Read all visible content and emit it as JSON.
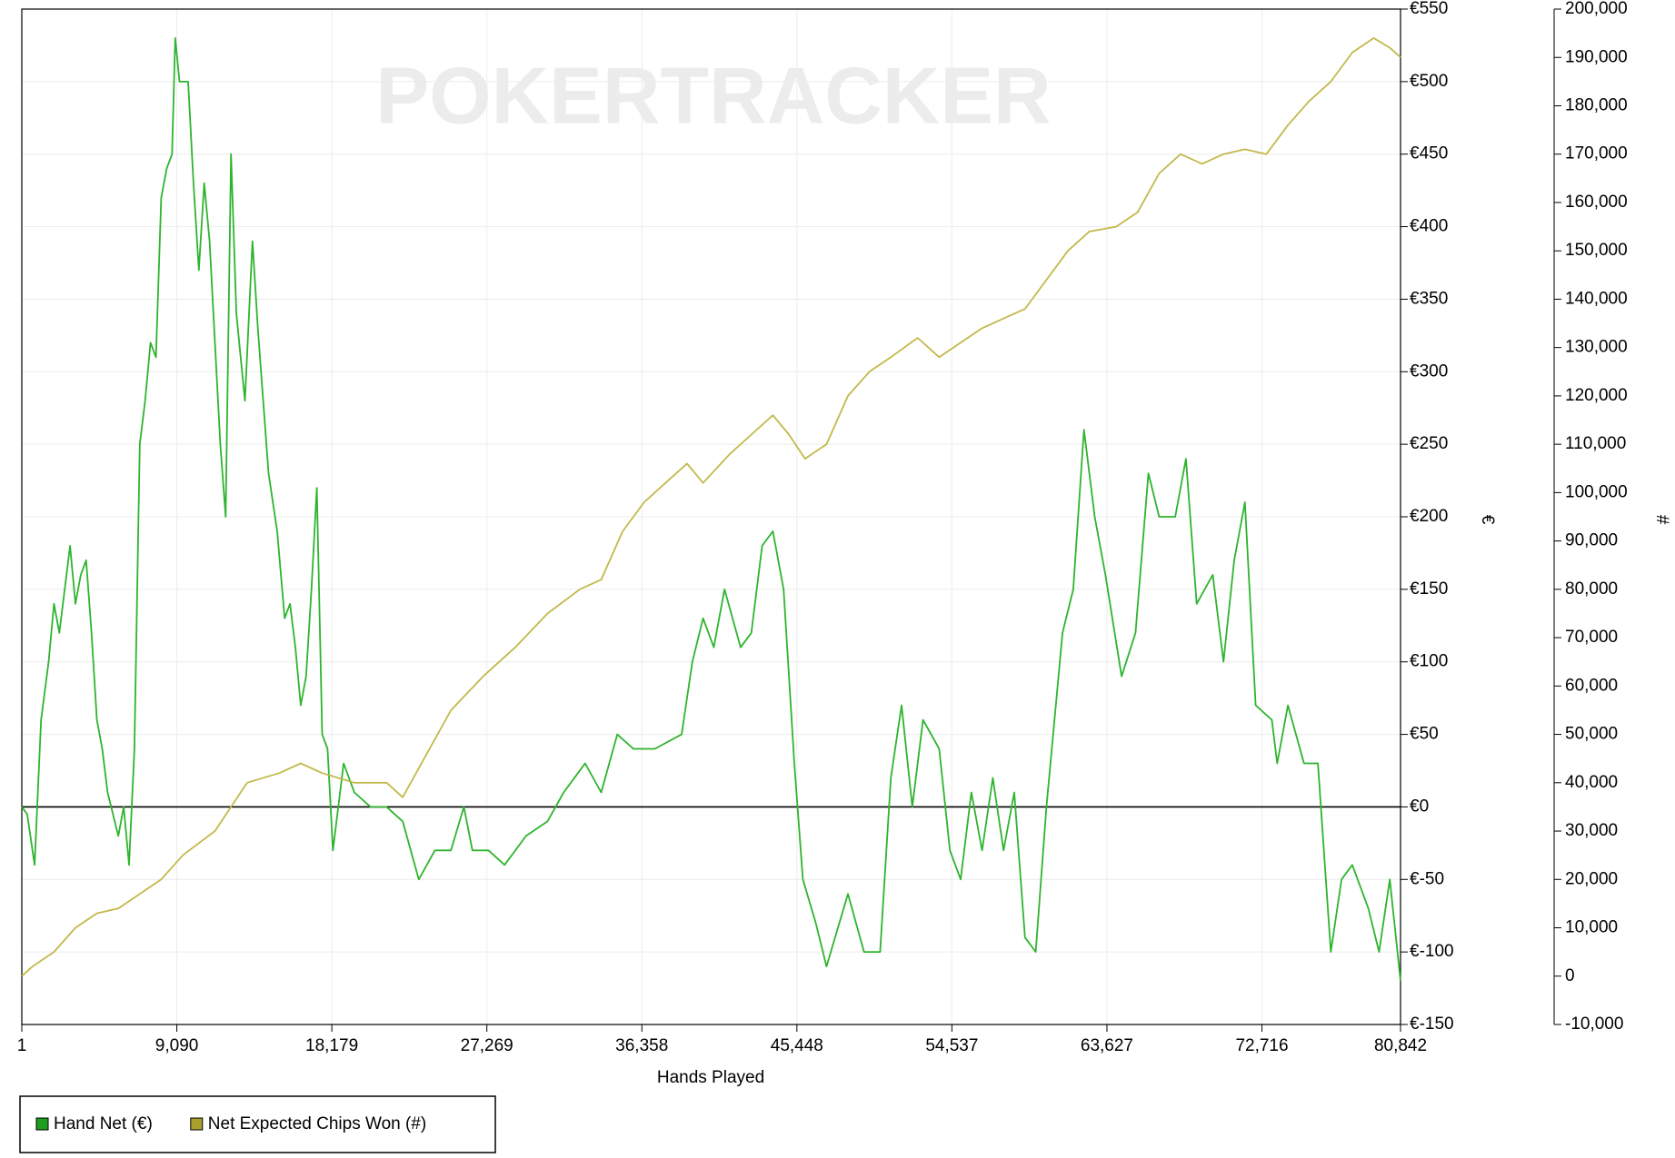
{
  "chart_data": {
    "type": "line",
    "watermark": "POKERTRACKER",
    "x_label": "Hands Played",
    "y_label": "€",
    "y2_label": "#",
    "grid": true,
    "legend": "bottom-left",
    "xlim": [
      1,
      80842
    ],
    "xticks": [
      1,
      {
        "value": 9090,
        "label": "9,090"
      },
      {
        "value": 18179,
        "label": "18,179"
      },
      {
        "value": 27269,
        "label": "27,269"
      },
      {
        "value": 36358,
        "label": "36,358"
      },
      {
        "value": 45448,
        "label": "45,448"
      },
      {
        "value": 54537,
        "label": "54,537"
      },
      {
        "value": 63627,
        "label": "63,627"
      },
      {
        "value": 72716,
        "label": "72,716"
      },
      {
        "value": 80842,
        "label": "80,842"
      }
    ],
    "ylim": [
      -150,
      550
    ],
    "yticks": [
      {
        "value": -150,
        "label": "€-150"
      },
      {
        "value": -100,
        "label": "€-100"
      },
      {
        "value": -50,
        "label": "€-50"
      },
      {
        "value": 0,
        "label": "€0"
      },
      {
        "value": 50,
        "label": "€50"
      },
      {
        "value": 100,
        "label": "€100"
      },
      {
        "value": 150,
        "label": "€150"
      },
      {
        "value": 200,
        "label": "€200"
      },
      {
        "value": 250,
        "label": "€250"
      },
      {
        "value": 300,
        "label": "€300"
      },
      {
        "value": 350,
        "label": "€350"
      },
      {
        "value": 400,
        "label": "€400"
      },
      {
        "value": 450,
        "label": "€450"
      },
      {
        "value": 500,
        "label": "€500"
      },
      {
        "value": 550,
        "label": "€550"
      }
    ],
    "y2lim": [
      -10000,
      200000
    ],
    "y2ticks": [
      {
        "value": -10000,
        "label": "-10,000"
      },
      0,
      {
        "value": 10000,
        "label": "10,000"
      },
      {
        "value": 20000,
        "label": "20,000"
      },
      {
        "value": 30000,
        "label": "30,000"
      },
      {
        "value": 40000,
        "label": "40,000"
      },
      {
        "value": 50000,
        "label": "50,000"
      },
      {
        "value": 60000,
        "label": "60,000"
      },
      {
        "value": 70000,
        "label": "70,000"
      },
      {
        "value": 80000,
        "label": "80,000"
      },
      {
        "value": 90000,
        "label": "90,000"
      },
      {
        "value": 100000,
        "label": "100,000"
      },
      {
        "value": 110000,
        "label": "110,000"
      },
      {
        "value": 120000,
        "label": "120,000"
      },
      {
        "value": 130000,
        "label": "130,000"
      },
      {
        "value": 140000,
        "label": "140,000"
      },
      {
        "value": 150000,
        "label": "150,000"
      },
      {
        "value": 160000,
        "label": "160,000"
      },
      {
        "value": 170000,
        "label": "170,000"
      },
      {
        "value": 180000,
        "label": "180,000"
      },
      {
        "value": 190000,
        "label": "190,000"
      },
      {
        "value": 200000,
        "label": "200,000"
      }
    ],
    "series": [
      {
        "name": "Hand Net (€)",
        "color": "#2eb42e",
        "legend_color": "#1e9e1e",
        "x": [
          1,
          315,
          755,
          1132,
          1573,
          1887,
          2202,
          2516,
          2831,
          3146,
          3460,
          3775,
          4089,
          4404,
          4718,
          5033,
          5662,
          5977,
          6291,
          6606,
          6920,
          7235,
          7549,
          7864,
          8178,
          8493,
          8808,
          8996,
          9248,
          9751,
          10066,
          10380,
          10695,
          11009,
          11324,
          11639,
          11953,
          12268,
          12582,
          13085,
          13526,
          13840,
          14470,
          14973,
          15413,
          15728,
          16042,
          16357,
          16671,
          16986,
          17301,
          17615,
          17930,
          18244,
          18873,
          19502,
          20446,
          21390,
          22333,
          23277,
          24221,
          25164,
          25919,
          26423,
          27366,
          28310,
          29568,
          30826,
          31770,
          33028,
          33972,
          34916,
          35859,
          37117,
          38690,
          39319,
          39948,
          40578,
          41207,
          42150,
          42779,
          43409,
          44038,
          44667,
          45296,
          45799,
          46554,
          47184,
          48442,
          49385,
          50330,
          50958,
          51588,
          52217,
          52846,
          53790,
          54419,
          55048,
          55677,
          56306,
          56935,
          57565,
          58194,
          58823,
          59452,
          60081,
          61025,
          61654,
          62283,
          62912,
          63541,
          64485,
          65303,
          66059,
          66688,
          67631,
          68260,
          68890,
          69832,
          70462,
          71091,
          71721,
          72350,
          73294,
          73608,
          74237,
          75181,
          75996,
          76754,
          77383,
          78012,
          78956,
          79585,
          80214,
          80842
        ],
        "values": [
          0,
          -5,
          -40,
          60,
          100,
          140,
          120,
          150,
          180,
          140,
          160,
          170,
          120,
          60,
          40,
          10,
          -20,
          0,
          -40,
          40,
          250,
          280,
          320,
          310,
          420,
          440,
          450,
          530,
          500,
          500,
          430,
          370,
          430,
          390,
          320,
          250,
          200,
          450,
          340,
          280,
          390,
          330,
          230,
          190,
          130,
          140,
          110,
          70,
          90,
          150,
          220,
          50,
          40,
          -30,
          30,
          10,
          0,
          0,
          -10,
          -50,
          -30,
          -30,
          0,
          -30,
          -30,
          -40,
          -20,
          -10,
          10,
          30,
          10,
          50,
          40,
          40,
          50,
          100,
          130,
          110,
          150,
          110,
          120,
          180,
          190,
          150,
          30,
          -50,
          -80,
          -110,
          -60,
          -100,
          -100,
          20,
          70,
          0,
          60,
          40,
          -30,
          -50,
          10,
          -30,
          20,
          -30,
          10,
          -90,
          -100,
          0,
          120,
          150,
          260,
          200,
          160,
          90,
          120,
          230,
          200,
          200,
          240,
          140,
          160,
          100,
          170,
          210,
          70,
          60,
          30,
          70,
          30,
          30,
          -100,
          -50,
          -40,
          -70,
          -100,
          -50,
          -120
        ]
      },
      {
        "name": "Net Expected Chips Won (#)",
        "color": "#c2b94a",
        "legend_color": "#a99f2c",
        "axis": "y2",
        "x": [
          1,
          630,
          1888,
          3146,
          4404,
          5662,
          6920,
          8178,
          9437,
          11324,
          13211,
          15099,
          16357,
          17615,
          19502,
          21390,
          22333,
          23592,
          25164,
          27052,
          28939,
          30826,
          32714,
          33972,
          35231,
          36489,
          37747,
          39005,
          39948,
          41521,
          42779,
          44038,
          44981,
          45925,
          47184,
          48442,
          49700,
          50958,
          52531,
          53790,
          55048,
          56306,
          57565,
          58823,
          60081,
          61339,
          62597,
          64170,
          65428,
          66688,
          67944,
          69202,
          70462,
          71718,
          72976,
          74237,
          75493,
          76754,
          78010,
          79270,
          80214,
          80842
        ],
        "values": [
          0,
          2000,
          5000,
          10000,
          13000,
          14000,
          17000,
          20000,
          25000,
          30000,
          40000,
          42000,
          44000,
          42000,
          40000,
          40000,
          37000,
          45000,
          55000,
          62000,
          68000,
          75000,
          80000,
          82000,
          92000,
          98000,
          102000,
          106000,
          102000,
          108000,
          112000,
          116000,
          112000,
          107000,
          110000,
          120000,
          125000,
          128000,
          132000,
          128000,
          131000,
          134000,
          136000,
          138000,
          144000,
          150000,
          154000,
          155000,
          158000,
          166000,
          170000,
          168000,
          170000,
          171000,
          170000,
          176000,
          181000,
          185000,
          191000,
          194000,
          192000,
          190000
        ]
      }
    ]
  }
}
